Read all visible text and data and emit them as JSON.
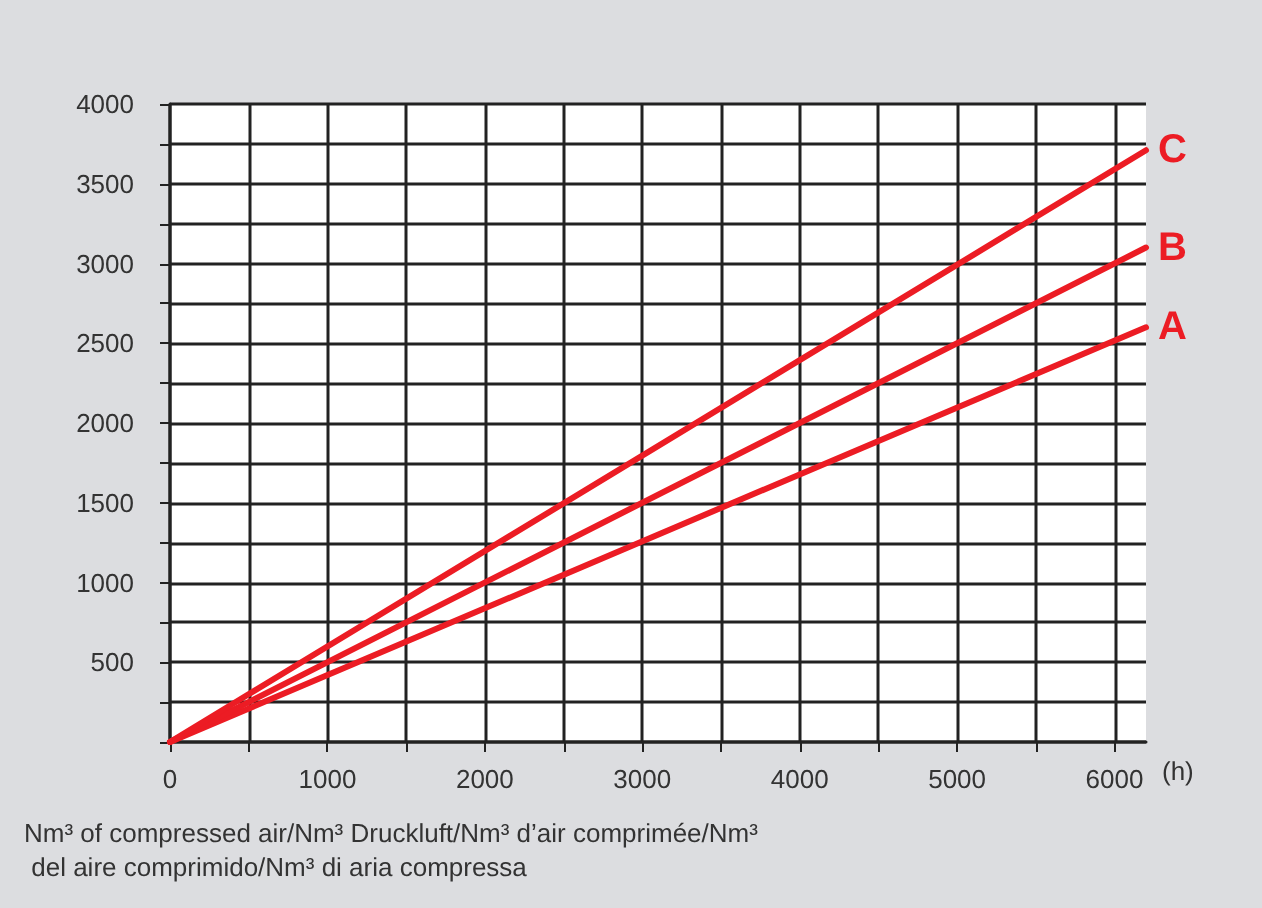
{
  "chart_data": {
    "type": "line",
    "xlabel": "(h)",
    "annotations": [
      "Nm³ of compressed air/Nm³ Druckluft/Nm³ d’air comprimée/Nm³ del aire comprimido/Nm³ di aria compressa"
    ],
    "x": [
      0,
      6200
    ],
    "series": [
      {
        "name": "A",
        "color": "#ec1c24",
        "values": [
          0,
          2600
        ]
      },
      {
        "name": "B",
        "color": "#ec1c24",
        "values": [
          0,
          3100
        ]
      },
      {
        "name": "C",
        "color": "#ec1c24",
        "values": [
          0,
          3710
        ]
      }
    ],
    "xlim": [
      0,
      6200
    ],
    "xticks": [
      0,
      {
        "value": 500,
        "label": null
      },
      1000,
      {
        "value": 1500,
        "label": null
      },
      2000,
      {
        "value": 2500,
        "label": null
      },
      3000,
      {
        "value": 3500,
        "label": null
      },
      4000,
      {
        "value": 4500,
        "label": null
      },
      5000,
      {
        "value": 5500,
        "label": null
      },
      6000
    ],
    "ylim": [
      0,
      4000
    ],
    "yticks": [
      {
        "value": 0,
        "label": null
      },
      {
        "value": 250,
        "label": null
      },
      500,
      {
        "value": 750,
        "label": null
      },
      1000,
      {
        "value": 1250,
        "label": null
      },
      1500,
      {
        "value": 1750,
        "label": null
      },
      2000,
      {
        "value": 2250,
        "label": null
      },
      2500,
      {
        "value": 2750,
        "label": null
      },
      3000,
      {
        "value": 3250,
        "label": null
      },
      3500,
      {
        "value": 3750,
        "label": null
      },
      4000
    ],
    "grid": true,
    "marker": "none",
    "line_style": "solid"
  }
}
